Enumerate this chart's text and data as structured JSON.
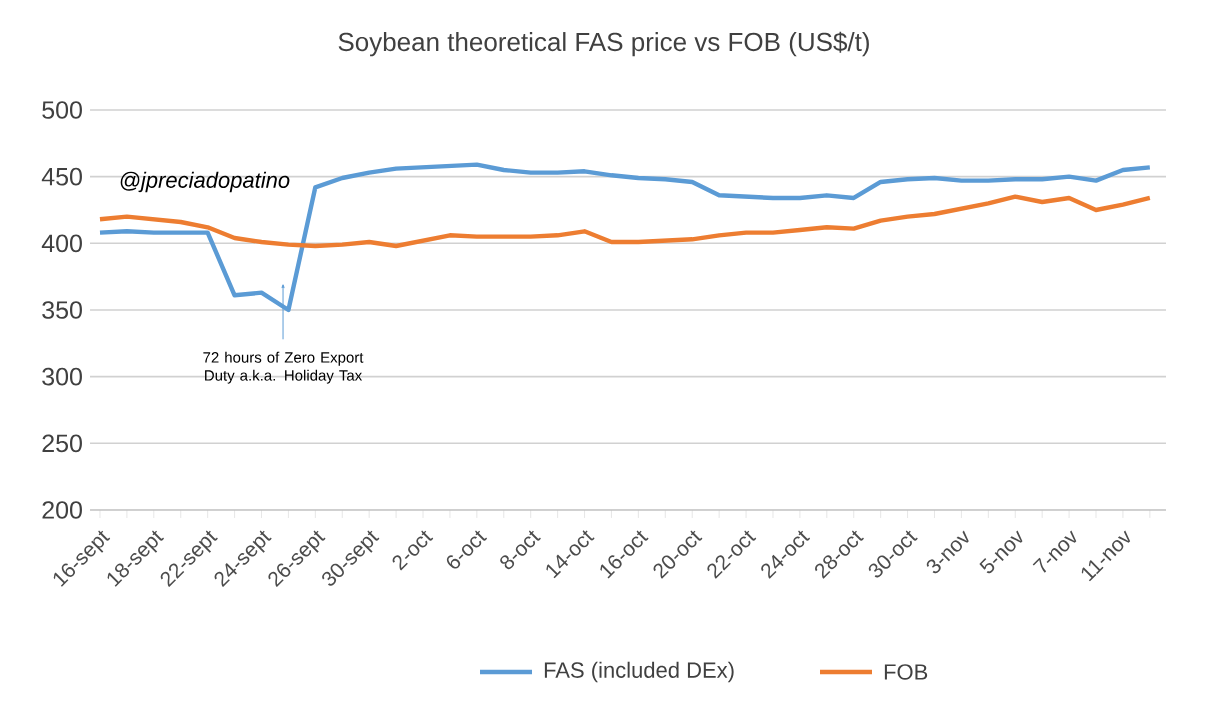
{
  "chart_data": {
    "type": "line",
    "title": "Soybean theoretical FAS price vs FOB  (US$/t)",
    "categories": [
      "16-sept",
      null,
      "18-sept",
      null,
      "22-sept",
      null,
      "24-sept",
      null,
      "26-sept",
      null,
      "30-sept",
      null,
      "2-oct",
      null,
      "6-oct",
      null,
      "8-oct",
      null,
      "14-oct",
      null,
      "16-oct",
      null,
      "20-oct",
      null,
      "22-oct",
      null,
      "24-oct",
      null,
      "28-oct",
      null,
      "30-oct",
      null,
      "3-nov",
      null,
      "5-nov",
      null,
      "7-nov",
      null,
      "11-nov",
      null
    ],
    "series": [
      {
        "name": "FAS (included DEx)",
        "color": "#5b9bd5",
        "values": [
          408,
          409,
          408,
          408,
          408,
          361,
          363,
          350,
          442,
          449,
          453,
          456,
          457,
          458,
          459,
          455,
          453,
          453,
          454,
          451,
          449,
          448,
          446,
          436,
          435,
          434,
          434,
          436,
          434,
          446,
          448,
          449,
          447,
          447,
          448,
          448,
          450,
          447,
          455,
          457
        ]
      },
      {
        "name": "FOB",
        "color": "#ed7d31",
        "values": [
          418,
          420,
          418,
          416,
          412,
          404,
          401,
          399,
          398,
          399,
          401,
          398,
          402,
          406,
          405,
          405,
          405,
          406,
          409,
          401,
          401,
          402,
          403,
          406,
          408,
          408,
          410,
          412,
          411,
          417,
          420,
          422,
          426,
          430,
          435,
          431,
          434,
          425,
          429,
          434
        ]
      }
    ],
    "ylim": [
      200,
      500
    ],
    "yticks": [
      200,
      250,
      300,
      350,
      400,
      450,
      500
    ],
    "grid": "y",
    "legend": "bottom",
    "marker": "none",
    "line_style": "solid",
    "annotations": [
      "@jpreciadopatino",
      {
        "text": "72 hours of Zero Export Duty a.k.a. Holiday Tax",
        "y": 370
      }
    ]
  }
}
